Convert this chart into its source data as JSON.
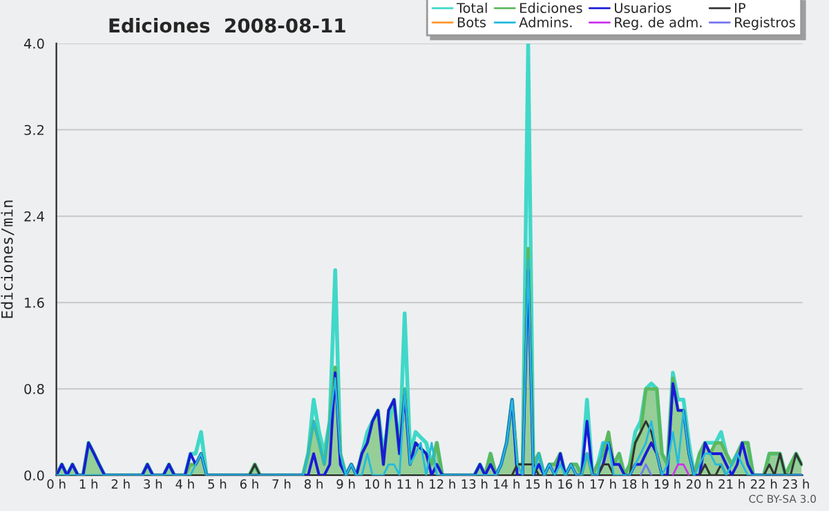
{
  "chart_data": {
    "type": "line",
    "title": "Ediciones  2008-08-11",
    "ylabel": "Ediciones/min",
    "annotations": [
      "CC BY-SA 3.0"
    ],
    "x": [
      0,
      0.17,
      0.33,
      0.5,
      0.67,
      0.83,
      1,
      1.17,
      1.33,
      1.5,
      1.67,
      1.83,
      2,
      2.17,
      2.33,
      2.5,
      2.67,
      2.83,
      3,
      3.17,
      3.33,
      3.5,
      3.67,
      3.83,
      4,
      4.17,
      4.33,
      4.5,
      4.67,
      4.83,
      5,
      5.17,
      5.33,
      5.5,
      5.67,
      5.83,
      6,
      6.17,
      6.33,
      6.5,
      6.67,
      6.83,
      7,
      7.17,
      7.33,
      7.5,
      7.67,
      7.83,
      8,
      8.17,
      8.33,
      8.5,
      8.67,
      8.83,
      9,
      9.17,
      9.33,
      9.5,
      9.67,
      9.83,
      10,
      10.17,
      10.33,
      10.5,
      10.67,
      10.83,
      11,
      11.17,
      11.33,
      11.5,
      11.67,
      11.83,
      12,
      12.17,
      12.33,
      12.5,
      12.67,
      12.83,
      13,
      13.17,
      13.33,
      13.5,
      13.67,
      13.83,
      14,
      14.17,
      14.33,
      14.5,
      14.67,
      14.83,
      15,
      15.17,
      15.33,
      15.5,
      15.67,
      15.83,
      16,
      16.17,
      16.33,
      16.5,
      16.67,
      16.83,
      17,
      17.17,
      17.33,
      17.5,
      17.67,
      17.83,
      18,
      18.17,
      18.33,
      18.5,
      18.67,
      18.83,
      19,
      19.17,
      19.33,
      19.5,
      19.67,
      19.83,
      20,
      20.17,
      20.33,
      20.5,
      20.67,
      20.83,
      21,
      21.17,
      21.33,
      21.5,
      21.67,
      21.83,
      22,
      22.17,
      22.33,
      22.5,
      22.67,
      22.83,
      23,
      23.17
    ],
    "series": [
      {
        "name": "Total",
        "color": "#40d8c8",
        "values": [
          0,
          0.1,
          0,
          0.1,
          0,
          0,
          0.3,
          0.2,
          0.1,
          0,
          0,
          0,
          0,
          0,
          0,
          0,
          0,
          0.1,
          0,
          0,
          0,
          0.1,
          0,
          0,
          0,
          0.2,
          0.2,
          0.4,
          0,
          0,
          0,
          0,
          0,
          0,
          0,
          0,
          0,
          0.1,
          0,
          0,
          0,
          0,
          0,
          0,
          0,
          0,
          0,
          0.2,
          0.7,
          0.4,
          0.2,
          0.5,
          1.9,
          0.2,
          0,
          0.1,
          0,
          0.2,
          0.4,
          0.5,
          0.6,
          0.2,
          0.5,
          0.7,
          0.2,
          1.5,
          0.2,
          0.4,
          0.35,
          0.3,
          0.1,
          0.3,
          0,
          0,
          0,
          0,
          0,
          0,
          0,
          0.1,
          0,
          0.2,
          0,
          0.1,
          0.3,
          0.7,
          0.1,
          0.1,
          4.0,
          0.1,
          0.2,
          0,
          0.1,
          0.1,
          0.2,
          0,
          0.1,
          0.1,
          0,
          0.7,
          0,
          0.1,
          0.3,
          0.3,
          0.1,
          0.2,
          0,
          0.1,
          0.4,
          0.5,
          0.8,
          0.85,
          0.8,
          0.2,
          0.1,
          0.95,
          0.7,
          0.7,
          0.3,
          0,
          0.2,
          0.3,
          0.3,
          0.3,
          0.4,
          0.2,
          0.1,
          0.2,
          0.3,
          0.3,
          0,
          0,
          0,
          0.2,
          0.2,
          0.2,
          0,
          0.1,
          0.2,
          0.1
        ]
      },
      {
        "name": "Ediciones",
        "type": "area",
        "color": "#5cb85c",
        "values": [
          0,
          0.1,
          0,
          0.1,
          0,
          0,
          0.3,
          0.2,
          0.1,
          0,
          0,
          0,
          0,
          0,
          0,
          0,
          0,
          0.1,
          0,
          0,
          0,
          0.1,
          0,
          0,
          0,
          0.1,
          0.1,
          0.2,
          0,
          0,
          0,
          0,
          0,
          0,
          0,
          0,
          0,
          0.1,
          0,
          0,
          0,
          0,
          0,
          0,
          0,
          0,
          0,
          0.2,
          0.5,
          0.3,
          0.1,
          0.5,
          1.0,
          0.2,
          0,
          0.1,
          0,
          0.2,
          0.3,
          0.5,
          0.6,
          0.1,
          0.6,
          0.7,
          0.2,
          0.8,
          0.1,
          0.3,
          0.25,
          0.2,
          0.1,
          0.3,
          0,
          0,
          0,
          0,
          0,
          0,
          0,
          0.1,
          0,
          0.2,
          0,
          0.1,
          0.3,
          0.7,
          0.1,
          0.1,
          2.1,
          0.1,
          0.2,
          0,
          0.1,
          0.1,
          0.2,
          0,
          0.1,
          0.1,
          0,
          0.2,
          0,
          0.1,
          0.2,
          0.4,
          0.1,
          0.2,
          0,
          0.1,
          0.3,
          0.4,
          0.8,
          0.8,
          0.8,
          0.2,
          0.1,
          0.9,
          0.6,
          0.6,
          0.2,
          0,
          0.2,
          0.3,
          0.2,
          0.3,
          0.3,
          0.2,
          0.1,
          0.2,
          0.3,
          0.3,
          0,
          0,
          0,
          0.2,
          0.2,
          0.2,
          0,
          0.1,
          0.2,
          0.1
        ]
      },
      {
        "name": "Usuarios",
        "color": "#1a1ad8",
        "values": [
          0,
          0.1,
          0,
          0.1,
          0,
          0,
          0.3,
          0.2,
          0.1,
          0,
          0,
          0,
          0,
          0,
          0,
          0,
          0,
          0.1,
          0,
          0,
          0,
          0.1,
          0,
          0,
          0,
          0.2,
          0.1,
          0.2,
          0,
          0,
          0,
          0,
          0,
          0,
          0,
          0,
          0,
          0,
          0,
          0,
          0,
          0,
          0,
          0,
          0,
          0,
          0,
          0,
          0.2,
          0,
          0,
          0.1,
          0.95,
          0.1,
          0,
          0.1,
          0,
          0.2,
          0.3,
          0.5,
          0.6,
          0.1,
          0.6,
          0.7,
          0.2,
          0.75,
          0.1,
          0.3,
          0.25,
          0.2,
          0,
          0.1,
          0,
          0,
          0,
          0,
          0,
          0,
          0,
          0.1,
          0,
          0.1,
          0,
          0.1,
          0.3,
          0.7,
          0,
          0,
          1.9,
          0,
          0.1,
          0,
          0.1,
          0,
          0.2,
          0,
          0.1,
          0,
          0,
          0.5,
          0,
          0,
          0.1,
          0.3,
          0.1,
          0.1,
          0,
          0,
          0.1,
          0.1,
          0.2,
          0.3,
          0.2,
          0,
          0,
          0.85,
          0.6,
          0.6,
          0.2,
          0,
          0,
          0.3,
          0.2,
          0.2,
          0.2,
          0.1,
          0,
          0.1,
          0.3,
          0.1,
          0,
          0,
          0,
          0,
          0,
          0,
          0,
          0,
          0,
          0
        ]
      },
      {
        "name": "IP",
        "color": "#333333",
        "values": [
          null,
          null,
          null,
          null,
          null,
          null,
          null,
          null,
          null,
          null,
          null,
          null,
          null,
          null,
          null,
          null,
          null,
          null,
          null,
          null,
          null,
          null,
          null,
          null,
          null,
          null,
          null,
          null,
          null,
          null,
          null,
          null,
          null,
          null,
          null,
          null,
          0,
          0.1,
          0,
          null,
          null,
          null,
          null,
          null,
          null,
          null,
          null,
          null,
          null,
          null,
          null,
          null,
          null,
          null,
          null,
          null,
          null,
          null,
          null,
          null,
          null,
          null,
          null,
          null,
          null,
          null,
          null,
          null,
          null,
          null,
          null,
          null,
          null,
          null,
          null,
          null,
          null,
          null,
          null,
          null,
          null,
          null,
          null,
          null,
          null,
          0,
          0.1,
          0.1,
          0.1,
          0.1,
          0,
          null,
          null,
          null,
          null,
          null,
          null,
          null,
          null,
          null,
          null,
          0,
          0.1,
          0.1,
          0,
          null,
          null,
          0,
          0.3,
          0.4,
          0.5,
          0.4,
          0.2,
          0,
          null,
          null,
          null,
          null,
          null,
          null,
          0,
          0.1,
          0,
          0,
          0.1,
          0,
          null,
          null,
          null,
          null,
          null,
          null,
          0,
          0.1,
          0,
          0.2,
          0,
          0,
          0.2,
          0.1
        ]
      },
      {
        "name": "Bots",
        "color": "#ff9933",
        "values": [
          null,
          null,
          null,
          null,
          null,
          null,
          null,
          null,
          null,
          null,
          null,
          null,
          null,
          null,
          null,
          null,
          null,
          null,
          null,
          null,
          null,
          null,
          null,
          null,
          null,
          null,
          null,
          null,
          null,
          null,
          null,
          null,
          null,
          null,
          null,
          null,
          null,
          null,
          null,
          null,
          null,
          null,
          null,
          null,
          null,
          null,
          null,
          null,
          null,
          null,
          null,
          null,
          null,
          null,
          null,
          null,
          null,
          null,
          null,
          null,
          null,
          null,
          null,
          null,
          null,
          null,
          null,
          null,
          null,
          null,
          null,
          null,
          null,
          null,
          null,
          null,
          null,
          null,
          null,
          null,
          null,
          null,
          null,
          null,
          null,
          null,
          null,
          null,
          null,
          null,
          null,
          null,
          null,
          null,
          null,
          null,
          null,
          null,
          null,
          null,
          null,
          null,
          null,
          null,
          null,
          null,
          null,
          null,
          null,
          null,
          null,
          null,
          null,
          null,
          null,
          null,
          null,
          null,
          null,
          null,
          null,
          null,
          null,
          null,
          null,
          null,
          null,
          null,
          null,
          null,
          null,
          null,
          null,
          null,
          null,
          null,
          null,
          null,
          null,
          null
        ]
      },
      {
        "name": "Admins.",
        "color": "#22bbdd",
        "values": [
          0,
          0,
          0,
          0,
          0,
          0,
          0,
          0,
          0,
          0,
          0,
          0,
          0,
          0,
          0,
          0,
          0,
          0,
          0,
          0,
          0,
          0,
          0,
          0,
          0,
          0,
          0.1,
          0.2,
          0,
          0,
          0,
          0,
          0,
          0,
          0,
          0,
          0,
          0,
          0,
          0,
          0,
          0,
          0,
          0,
          0,
          0,
          0,
          0.2,
          0.5,
          0.3,
          0.1,
          0.5,
          0.9,
          0.2,
          0,
          0.1,
          0,
          0,
          0.2,
          0,
          0,
          0,
          0.1,
          0.1,
          0,
          0.8,
          0.1,
          0.2,
          0.3,
          0,
          0.3,
          0,
          0,
          0,
          0,
          0,
          0,
          0,
          0,
          0,
          0,
          0,
          0,
          0.1,
          0.3,
          0.7,
          0.1,
          0,
          2.0,
          0,
          0.2,
          0,
          0.1,
          0,
          0.1,
          0,
          0.1,
          0,
          0,
          0.2,
          0,
          0,
          0.3,
          0.3,
          0,
          0,
          0,
          0,
          0.1,
          0.2,
          0.3,
          0.5,
          0.2,
          0,
          0.1,
          0.4,
          0.1,
          0.6,
          0.2,
          0,
          0.1,
          0.2,
          0.2,
          0.1,
          0.1,
          0,
          0.1,
          0.2,
          0.1,
          0,
          0,
          0,
          0,
          0,
          0,
          0,
          0,
          0,
          0,
          0
        ]
      },
      {
        "name": "Reg. de adm.",
        "color": "#cc33ee",
        "values": [
          null,
          null,
          null,
          null,
          null,
          null,
          null,
          null,
          null,
          null,
          null,
          null,
          null,
          null,
          null,
          null,
          null,
          null,
          null,
          null,
          null,
          null,
          null,
          null,
          null,
          null,
          null,
          null,
          null,
          null,
          null,
          null,
          null,
          null,
          null,
          null,
          null,
          null,
          null,
          null,
          null,
          null,
          null,
          null,
          null,
          null,
          null,
          null,
          null,
          null,
          null,
          null,
          null,
          null,
          null,
          null,
          null,
          null,
          null,
          null,
          null,
          null,
          null,
          null,
          null,
          null,
          null,
          null,
          null,
          null,
          null,
          null,
          null,
          null,
          null,
          null,
          null,
          null,
          null,
          null,
          null,
          null,
          null,
          null,
          null,
          null,
          null,
          null,
          null,
          null,
          null,
          null,
          null,
          null,
          null,
          null,
          null,
          null,
          null,
          null,
          null,
          null,
          null,
          null,
          null,
          null,
          null,
          null,
          null,
          null,
          null,
          null,
          null,
          null,
          null,
          0,
          0.1,
          0.1,
          0,
          null,
          null,
          null,
          null,
          null,
          null,
          null,
          null,
          null,
          null,
          null,
          null,
          null,
          null,
          null,
          null,
          null,
          null,
          null,
          null,
          null
        ]
      },
      {
        "name": "Registros",
        "color": "#7777ee",
        "values": [
          null,
          null,
          null,
          null,
          null,
          null,
          null,
          null,
          null,
          null,
          null,
          null,
          null,
          null,
          null,
          null,
          null,
          null,
          null,
          null,
          null,
          null,
          null,
          null,
          null,
          null,
          null,
          null,
          null,
          null,
          null,
          null,
          null,
          null,
          null,
          null,
          null,
          null,
          null,
          null,
          null,
          null,
          null,
          null,
          null,
          null,
          null,
          null,
          null,
          null,
          null,
          null,
          null,
          null,
          null,
          null,
          null,
          null,
          null,
          null,
          null,
          null,
          null,
          null,
          null,
          null,
          null,
          null,
          null,
          null,
          null,
          null,
          null,
          null,
          null,
          null,
          null,
          null,
          null,
          null,
          null,
          null,
          null,
          null,
          null,
          null,
          null,
          null,
          null,
          null,
          null,
          null,
          null,
          null,
          null,
          null,
          null,
          null,
          null,
          null,
          null,
          null,
          null,
          null,
          null,
          null,
          null,
          null,
          null,
          0,
          0.1,
          0,
          null,
          null,
          null,
          null,
          null,
          null,
          null,
          null,
          null,
          null,
          null,
          null,
          null,
          null,
          null,
          null,
          null,
          null,
          null,
          null,
          null,
          null,
          null,
          null,
          null,
          null,
          null,
          null
        ]
      }
    ],
    "xlim": [
      0,
      23.2
    ],
    "xticks": [
      {
        "value": 0,
        "label": "0 h"
      },
      {
        "value": 1,
        "label": "1 h"
      },
      {
        "value": 2,
        "label": "2 h"
      },
      {
        "value": 3,
        "label": "3 h"
      },
      {
        "value": 4,
        "label": "4 h"
      },
      {
        "value": 5,
        "label": "5 h"
      },
      {
        "value": 6,
        "label": "6 h"
      },
      {
        "value": 7,
        "label": "7 h"
      },
      {
        "value": 8,
        "label": "8 h"
      },
      {
        "value": 9,
        "label": "9 h"
      },
      {
        "value": 10,
        "label": "10 h"
      },
      {
        "value": 11,
        "label": "11 h"
      },
      {
        "value": 12,
        "label": "12 h"
      },
      {
        "value": 13,
        "label": "13 h"
      },
      {
        "value": 14,
        "label": "14 h"
      },
      {
        "value": 15,
        "label": "15 h"
      },
      {
        "value": 16,
        "label": "16 h"
      },
      {
        "value": 17,
        "label": "17 h"
      },
      {
        "value": 18,
        "label": "18 h"
      },
      {
        "value": 19,
        "label": "19 h"
      },
      {
        "value": 20,
        "label": "20 h"
      },
      {
        "value": 21,
        "label": "21 h"
      },
      {
        "value": 22,
        "label": "22 h"
      },
      {
        "value": 23,
        "label": "23 h"
      }
    ],
    "ylim": [
      0,
      4.0
    ],
    "yticks": [
      {
        "value": 0,
        "label": "0.0"
      },
      {
        "value": 0.8,
        "label": "0.8"
      },
      {
        "value": 1.6,
        "label": "1.6"
      },
      {
        "value": 2.4,
        "label": "2.4"
      },
      {
        "value": 3.2,
        "label": "3.2"
      },
      {
        "value": 4.0,
        "label": "4.0"
      }
    ],
    "grid": "y",
    "legend": "top right",
    "marker": "none",
    "line_style": "solid"
  }
}
